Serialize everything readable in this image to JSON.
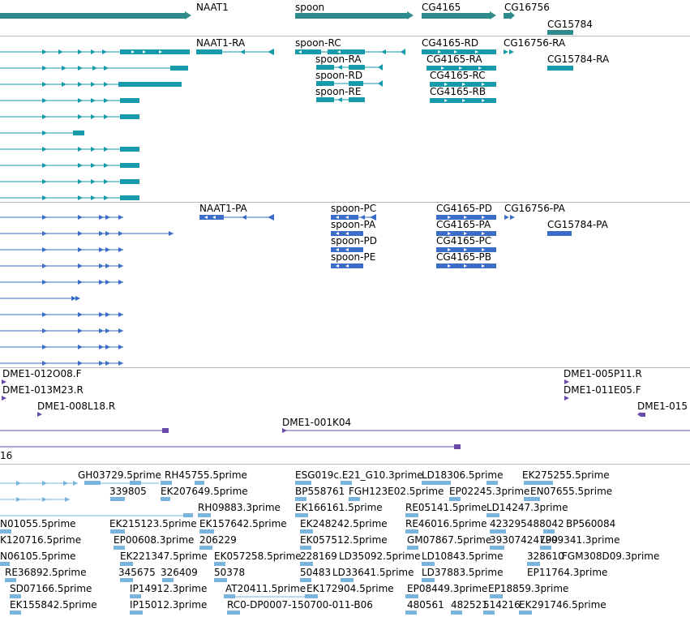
{
  "colors": {
    "gene": "#2e8b8b",
    "rna_teal": "#149aaa",
    "protein_blue": "#3a6cc8",
    "clone_purple": "#6a4aa8",
    "est_lightblue": "#78b4dc",
    "divider": "#b9b9b9"
  },
  "tracks": {
    "genes": {
      "labels": [
        "NAAT1",
        "spoon",
        "CG4165",
        "CG16756",
        "CG15784"
      ]
    },
    "transcripts": {
      "labels": [
        "NAAT1-RA",
        "spoon-RC",
        "CG4165-RD",
        "CG16756-RA",
        "spoon-RA",
        "CG4165-RA",
        "CG15784-RA",
        "spoon-RD",
        "CG4165-RC",
        "spoon-RE",
        "CG4165-RB"
      ]
    },
    "proteins": {
      "labels": [
        "NAAT1-PA",
        "spoon-PC",
        "CG4165-PD",
        "CG16756-PA",
        "spoon-PA",
        "CG4165-PA",
        "CG15784-PA",
        "spoon-PD",
        "CG4165-PC",
        "spoon-PE",
        "CG4165-PB"
      ]
    },
    "clones": {
      "labels": [
        "DME1-012O08.F",
        "DME1-005P11.R",
        "DME1-013M23.R",
        "DME1-011E05.F",
        "DME1-008L18.R",
        "DME1-015",
        "DME1-001K04",
        "16"
      ]
    },
    "ests": {
      "labels": [
        "GH03729.5prime",
        "RH45755.5prime",
        "ESG019c.E21_G10.3prime",
        "LD18306.5prime",
        "EK275255.5prime",
        "339805",
        "EK207649.5prime",
        "BP558761",
        "FGH123E02.5prime",
        "EP02245.3prime",
        "EN07655.5prime",
        "RH09883.3prime",
        "EK166161.5prime",
        "RE05141.5prime",
        "LD14247.3prime",
        "N01055.5prime",
        "EK215123.5prime",
        "EK157642.5prime",
        "EK248242.5prime",
        "RE46016.5prime",
        "423295488042",
        "BP560084",
        "K120716.5prime",
        "EP00608.3prime",
        "206229",
        "EK057512.5prime",
        "GM07867.5prime",
        "39307424799",
        "LP09341.3prime",
        "N06105.5prime",
        "EK221347.5prime",
        "EK057258.5prime",
        "228169",
        "LD35092.5prime",
        "LD10843.5prime",
        "328610",
        "FGM308D09.3prime",
        "RE36892.5prime",
        "345675",
        "326409",
        "50378",
        "50483",
        "LD33641.5prime",
        "LD37883.5prime",
        "EP11764.3prime",
        "SD07166.5prime",
        "IP14912.3prime",
        "AT20411.5prime",
        "EK172904.5prime",
        "EP08449.3prime",
        "EP18859.3prime",
        "EK155842.5prime",
        "IP15012.3prime",
        "RC0-DP0007-150700-011-B06",
        "480561",
        "482521",
        "514216",
        "EK291746.5prime"
      ]
    }
  }
}
